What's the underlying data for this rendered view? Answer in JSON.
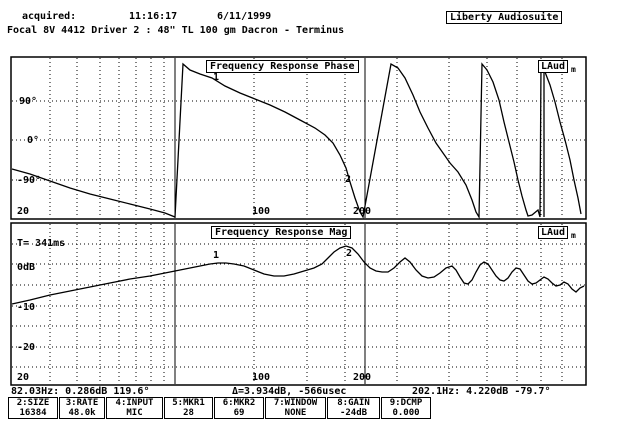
{
  "header": {
    "acquired_label": "acquired:",
    "time": "11:16:17",
    "date": "6/11/1999",
    "app_badge": "Liberty Audiosuite",
    "subtitle": "Focal 8V 4412 Driver 2 : 48\" TL 100 gm Dacron - Terminus"
  },
  "phase_panel": {
    "title": "Frequency Response Phase",
    "corner_tag": "LAud",
    "corner_sub": "m",
    "y_labels": [
      "90°",
      "0°",
      "-90°"
    ],
    "x_labels": [
      "20",
      "100",
      "200"
    ],
    "marker1": "1",
    "marker2": "2"
  },
  "mag_panel": {
    "title": "Frequency Response Mag",
    "corner_tag": "LAud",
    "corner_sub": "m",
    "time_label": "T= 341ms",
    "y_labels": [
      "0dB",
      "-10",
      "-20"
    ],
    "x_labels": [
      "20",
      "100",
      "200"
    ],
    "marker1": "1",
    "marker2": "2"
  },
  "readout": {
    "left": "82.03Hz: 0.286dB 119.6°",
    "middle": "Δ=3.934dB, -566usec",
    "right": "202.1Hz: 4.220dB -79.7°"
  },
  "function_keys": [
    {
      "name": "2:SIZE",
      "value": "16384"
    },
    {
      "name": "3:RATE",
      "value": "48.0k"
    },
    {
      "name": "4:INPUT",
      "value": "MIC"
    },
    {
      "name": "5:MKR1",
      "value": "28"
    },
    {
      "name": "6:MKR2",
      "value": "69"
    },
    {
      "name": "7:WINDOW",
      "value": "NONE"
    },
    {
      "name": "8:GAIN",
      "value": "-24dB"
    },
    {
      "name": "9:DCMP",
      "value": "0.000"
    }
  ],
  "colors": {
    "background": "#ffffff",
    "ink": "#000000"
  }
}
